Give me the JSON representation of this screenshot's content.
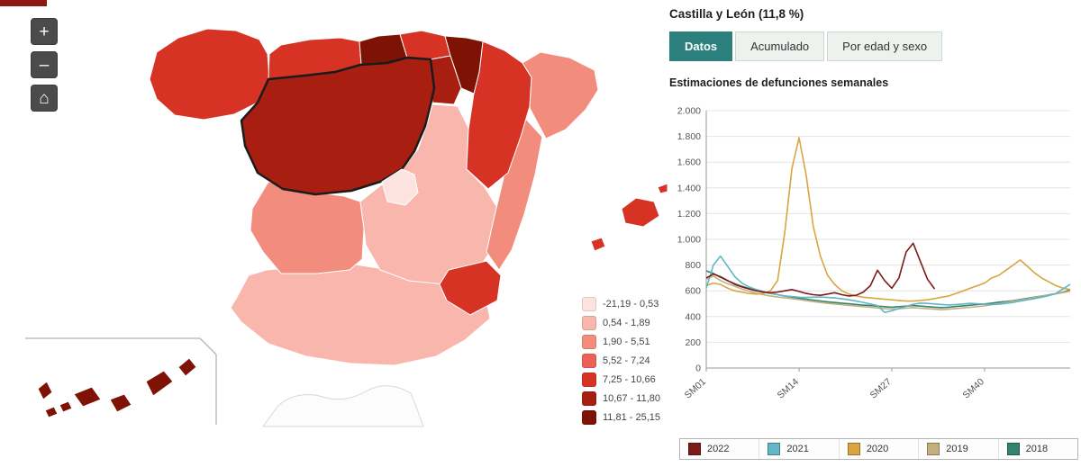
{
  "colors": {
    "accent_teal": "#2b7f7c",
    "control_gray": "#4b4b4b"
  },
  "map": {
    "controls": {
      "zoom_in": "+",
      "zoom_out": "–",
      "home": "⌂"
    },
    "selected_region": "Castilla y León",
    "legend": [
      {
        "color": "#fce3df",
        "label": "-21,19 - 0,53"
      },
      {
        "color": "#f8b6ac",
        "label": "0,54  -  1,89"
      },
      {
        "color": "#f28d7e",
        "label": "1,90  -  5,51"
      },
      {
        "color": "#ec6055",
        "label": "5,52  -  7,24"
      },
      {
        "color": "#d63324",
        "label": "7,25  -  10,66"
      },
      {
        "color": "#a81f12",
        "label": "10,67 -  11,80"
      },
      {
        "color": "#7d1205",
        "label": "11,81 -  25,15"
      }
    ],
    "regions": {
      "galicia": {
        "name": "Galicia",
        "color": "#d63324"
      },
      "asturias": {
        "name": "Asturias",
        "color": "#d63324"
      },
      "cantabria": {
        "name": "Cantabria",
        "color": "#7d1205"
      },
      "pais-vasco": {
        "name": "País Vasco",
        "color": "#d63324"
      },
      "navarra": {
        "name": "Navarra",
        "color": "#7d1205"
      },
      "la-rioja": {
        "name": "La Rioja",
        "color": "#a81f12"
      },
      "aragon": {
        "name": "Aragón",
        "color": "#d63324"
      },
      "cataluna": {
        "name": "Cataluña",
        "color": "#f28d7e"
      },
      "castilla-y-leon": {
        "name": "Castilla y León",
        "color": "#a81f12",
        "selected": true
      },
      "madrid": {
        "name": "Comunidad de Madrid",
        "color": "#fce3df"
      },
      "castilla-la-mancha": {
        "name": "Castilla-La Mancha",
        "color": "#f8b6ac"
      },
      "valencia": {
        "name": "Comunitat Valenciana",
        "color": "#f28d7e"
      },
      "murcia": {
        "name": "Región de Murcia",
        "color": "#d63324"
      },
      "extremadura": {
        "name": "Extremadura",
        "color": "#f28d7e"
      },
      "andalucia": {
        "name": "Andalucía",
        "color": "#f8b6ac"
      },
      "baleares": {
        "name": "Illes Balears",
        "color": "#d63324"
      },
      "canarias": {
        "name": "Canarias",
        "color": "#7d1205"
      }
    }
  },
  "panel": {
    "title": "Castilla y León (11,8 %)",
    "tabs": [
      {
        "label": "Datos",
        "active": true
      },
      {
        "label": "Acumulado",
        "active": false
      },
      {
        "label": "Por edad y sexo",
        "active": false
      }
    ]
  },
  "chart_data": {
    "type": "line",
    "title": "Estimaciones de defunciones semanales",
    "xlabel": "",
    "ylabel": "",
    "weeks": 52,
    "ylim": [
      0,
      2000
    ],
    "grid": true,
    "legend_position": "bottom",
    "y_ticks": [
      0,
      200,
      400,
      600,
      800,
      1000,
      1200,
      1400,
      1600,
      1800,
      2000
    ],
    "y_tick_labels": [
      "0",
      "200",
      "400",
      "600",
      "800",
      "1.000",
      "1.200",
      "1.400",
      "1.600",
      "1.800",
      "2.000"
    ],
    "x_tick_weeks": [
      1,
      14,
      27,
      40
    ],
    "x_tick_labels": [
      "SM01",
      "SM14",
      "SM27",
      "SM40"
    ],
    "series": [
      {
        "name": "2022",
        "color": "#7d1b1b",
        "values": [
          700,
          730,
          710,
          680,
          650,
          630,
          615,
          600,
          590,
          585,
          590,
          600,
          610,
          595,
          580,
          570,
          565,
          575,
          585,
          570,
          560,
          565,
          590,
          640,
          760,
          680,
          620,
          700,
          900,
          970,
          830,
          690,
          615
        ]
      },
      {
        "name": "2021",
        "color": "#62b6c6",
        "values": [
          620,
          800,
          870,
          790,
          710,
          660,
          630,
          610,
          595,
          580,
          570,
          560,
          555,
          550,
          548,
          550,
          552,
          548,
          545,
          538,
          530,
          520,
          510,
          498,
          485,
          432,
          445,
          462,
          478,
          495,
          505,
          502,
          498,
          494,
          490,
          494,
          498,
          503,
          500,
          496,
          492,
          496,
          502,
          510,
          520,
          530,
          540,
          550,
          562,
          580,
          615,
          650
        ]
      },
      {
        "name": "2020",
        "color": "#d9a441",
        "values": [
          640,
          660,
          650,
          620,
          600,
          590,
          580,
          575,
          580,
          600,
          680,
          1050,
          1550,
          1790,
          1500,
          1100,
          870,
          720,
          650,
          600,
          575,
          560,
          550,
          545,
          540,
          535,
          530,
          525,
          520,
          520,
          525,
          530,
          540,
          550,
          560,
          580,
          600,
          620,
          640,
          660,
          700,
          720,
          760,
          800,
          840,
          790,
          740,
          700,
          670,
          640,
          620,
          610
        ]
      },
      {
        "name": "2019",
        "color": "#c4b07c",
        "values": [
          690,
          715,
          680,
          655,
          635,
          615,
          598,
          582,
          570,
          560,
          552,
          546,
          540,
          532,
          524,
          516,
          509,
          503,
          497,
          492,
          487,
          482,
          477,
          472,
          467,
          462,
          458,
          461,
          465,
          469,
          465,
          461,
          457,
          453,
          457,
          462,
          467,
          472,
          477,
          483,
          492,
          501,
          510,
          519,
          528,
          537,
          547,
          557,
          566,
          576,
          586,
          598
        ]
      },
      {
        "name": "2018",
        "color": "#35836f",
        "values": [
          755,
          735,
          705,
          678,
          655,
          635,
          618,
          602,
          590,
          580,
          570,
          560,
          551,
          543,
          535,
          528,
          521,
          515,
          509,
          504,
          499,
          494,
          489,
          485,
          481,
          477,
          473,
          477,
          481,
          485,
          481,
          477,
          473,
          469,
          473,
          478,
          483,
          488,
          493,
          498,
          504,
          512,
          517,
          523,
          532,
          541,
          550,
          559,
          568,
          578,
          589,
          608
        ]
      }
    ]
  }
}
